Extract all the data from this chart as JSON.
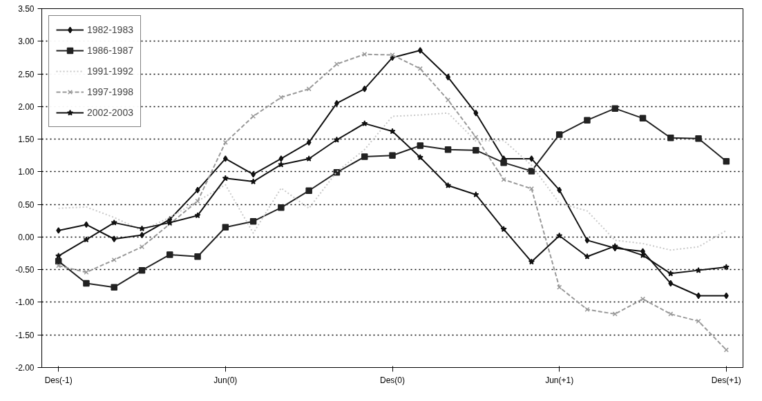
{
  "chart_data": {
    "type": "line",
    "categories": [
      "Des(-1)",
      null,
      null,
      null,
      null,
      null,
      "Jun(0)",
      null,
      null,
      null,
      null,
      null,
      "Des(0)",
      null,
      null,
      null,
      null,
      null,
      "Jun(+1)",
      null,
      null,
      null,
      null,
      null,
      "Des(+1)"
    ],
    "series": [
      {
        "name": "1982-1983",
        "color": "#111111",
        "marker": "diamond",
        "line_style": "solid",
        "values": [
          0.1,
          0.19,
          -0.03,
          0.03,
          0.27,
          0.72,
          1.2,
          0.96,
          1.2,
          1.45,
          2.05,
          2.27,
          2.75,
          2.86,
          2.45,
          1.9,
          1.2,
          1.2,
          0.72,
          -0.05,
          -0.17,
          -0.22,
          -0.71,
          -0.9,
          -0.9
        ]
      },
      {
        "name": "1986-1987",
        "color": "#222222",
        "marker": "square",
        "line_style": "solid",
        "values": [
          -0.37,
          -0.71,
          -0.77,
          -0.51,
          -0.27,
          -0.3,
          0.15,
          0.24,
          0.45,
          0.71,
          0.99,
          1.23,
          1.25,
          1.4,
          1.34,
          1.33,
          1.14,
          1.01,
          1.57,
          1.79,
          1.97,
          1.82,
          1.52,
          1.51,
          1.16
        ]
      },
      {
        "name": "1991-1992",
        "color": "#c8c8c8",
        "marker": "none",
        "line_style": "dotted",
        "values": [
          0.44,
          0.46,
          0.3,
          0.1,
          0.3,
          0.55,
          0.8,
          0.06,
          0.75,
          0.44,
          1.0,
          1.34,
          1.85,
          1.87,
          1.9,
          1.47,
          1.48,
          1.1,
          0.52,
          0.4,
          -0.05,
          -0.1,
          -0.2,
          -0.15,
          0.1
        ]
      },
      {
        "name": "1997-1998",
        "color": "#999999",
        "marker": "cross",
        "line_style": "dashed",
        "values": [
          -0.44,
          -0.54,
          -0.35,
          -0.15,
          0.2,
          0.55,
          1.45,
          1.85,
          2.14,
          2.27,
          2.65,
          2.8,
          2.79,
          2.58,
          2.1,
          1.53,
          0.88,
          0.74,
          -0.77,
          -1.11,
          -1.18,
          -0.95,
          -1.18,
          -1.29,
          -1.73
        ]
      },
      {
        "name": "2002-2003",
        "color": "#111111",
        "marker": "star",
        "line_style": "solid",
        "values": [
          -0.29,
          -0.04,
          0.22,
          0.13,
          0.22,
          0.33,
          0.9,
          0.85,
          1.11,
          1.2,
          1.49,
          1.74,
          1.62,
          1.22,
          0.79,
          0.65,
          0.12,
          -0.38,
          0.02,
          -0.3,
          -0.14,
          -0.28,
          -0.56,
          -0.51,
          -0.46
        ]
      }
    ],
    "ylim": [
      -2,
      3.5
    ],
    "yticks": [
      {
        "value": -2,
        "label": "-2.00"
      },
      {
        "value": -1.5,
        "label": "-1.50"
      },
      {
        "value": -1,
        "label": "-1.00"
      },
      {
        "value": -0.5,
        "label": "-0.50"
      },
      {
        "value": 0,
        "label": "0.00"
      },
      {
        "value": 0.5,
        "label": "0.50"
      },
      {
        "value": 1,
        "label": "1.00"
      },
      {
        "value": 1.5,
        "label": "1.50"
      },
      {
        "value": 2,
        "label": "2.00"
      },
      {
        "value": 2.5,
        "label": "2.50"
      },
      {
        "value": 3,
        "label": "3.00"
      },
      {
        "value": 3.5,
        "label": "3.50"
      }
    ],
    "grid": "y",
    "legend": "top left"
  }
}
